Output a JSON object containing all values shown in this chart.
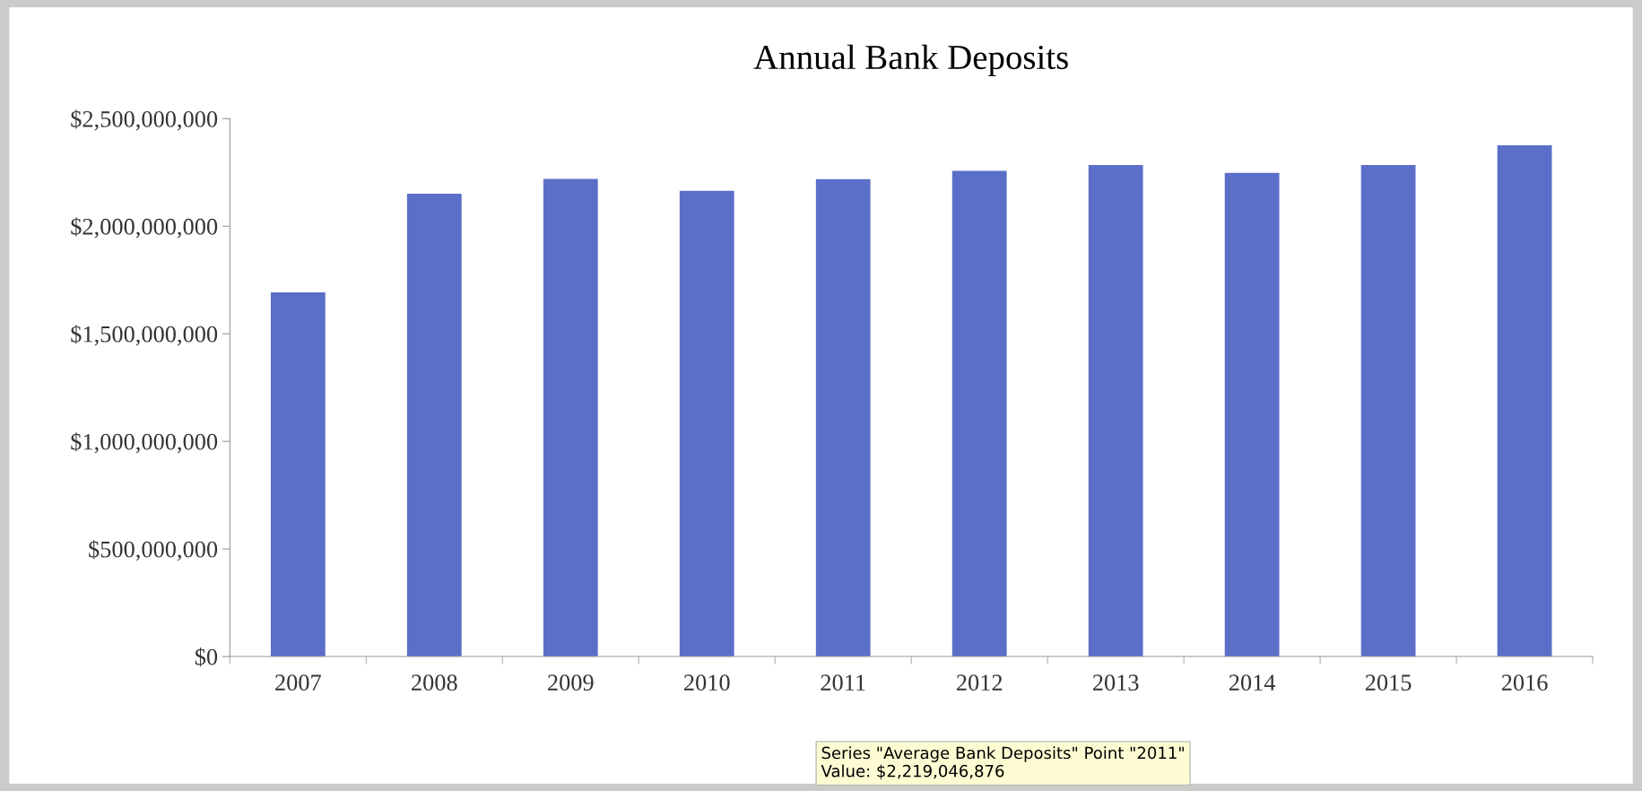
{
  "chart_data": {
    "type": "bar",
    "title": "Annual Bank Deposits",
    "categories": [
      "2007",
      "2008",
      "2009",
      "2010",
      "2011",
      "2012",
      "2013",
      "2014",
      "2015",
      "2016"
    ],
    "values": [
      1693000000,
      2151000000,
      2220000000,
      2165000000,
      2219046876,
      2257000000,
      2284000000,
      2248000000,
      2284000000,
      2376000000
    ],
    "color": "#5b6fc8",
    "ylim": [
      0,
      2500000000
    ],
    "yticks": [
      {
        "value": 0,
        "label": "$0"
      },
      {
        "value": 500000000,
        "label": "$500,000,000"
      },
      {
        "value": 1000000000,
        "label": "$1,000,000,000"
      },
      {
        "value": 1500000000,
        "label": "$1,500,000,000"
      },
      {
        "value": 2000000000,
        "label": "$2,000,000,000"
      },
      {
        "value": 2500000000,
        "label": "$2,500,000,000"
      }
    ],
    "grid": false,
    "legend": false,
    "annotations": [
      "Series \"Average Bank Deposits\" Point \"2011\"\nValue: $2,219,046,876"
    ]
  }
}
